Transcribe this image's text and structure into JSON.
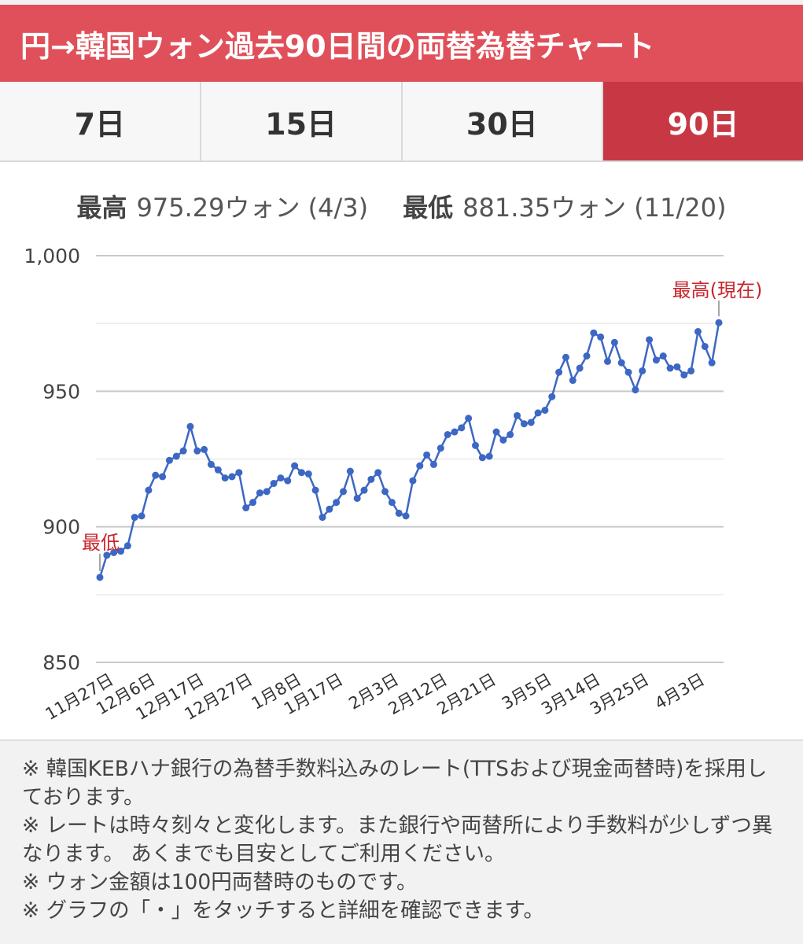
{
  "header": {
    "title": "円→韓国ウォン過去90日間の両替為替チャート"
  },
  "tabs": [
    {
      "label": "7日",
      "active": false
    },
    {
      "label": "15日",
      "active": false
    },
    {
      "label": "30日",
      "active": false
    },
    {
      "label": "90日",
      "active": true
    }
  ],
  "stats": {
    "high_label": "最高",
    "high_value": "975.29ウォン (4/3)",
    "low_label": "最低",
    "low_value": "881.35ウォン (11/20)"
  },
  "colors": {
    "header": "#e0505a",
    "active_tab": "#c73844",
    "line": "#3d67c4",
    "annotation": "#c8252c"
  },
  "chart_data": {
    "type": "line",
    "title": "",
    "xlabel": "",
    "ylabel": "",
    "ylim": [
      850,
      1000
    ],
    "yticks": [
      "1,000",
      "950",
      "900",
      "850"
    ],
    "grid": true,
    "xticks": [
      "11月27日",
      "12月6日",
      "12月17日",
      "12月27日",
      "1月8日",
      "1月17日",
      "2月3日",
      "2月12日",
      "2月21日",
      "3月5日",
      "3月14日",
      "3月25日",
      "4月3日"
    ],
    "xtick_index": [
      1,
      7,
      14,
      21,
      28,
      34,
      42,
      49,
      56,
      64,
      71,
      78,
      86
    ],
    "annotations": {
      "low": "最低",
      "high": "最高(現在)"
    },
    "series": [
      {
        "values": [
          881.35,
          889.5,
          890.5,
          891,
          893,
          903.5,
          904,
          913.5,
          919,
          918.5,
          924.5,
          926,
          928,
          937,
          928,
          928.5,
          923,
          921,
          918,
          918.5,
          920,
          907,
          909,
          912.5,
          913,
          916,
          918,
          917,
          922.5,
          920,
          919.5,
          913.5,
          903.5,
          906.5,
          909,
          913,
          920.5,
          910.5,
          913.5,
          917.5,
          920,
          913,
          909,
          905,
          904,
          917,
          922.5,
          926.5,
          923,
          929,
          934,
          935,
          936.5,
          940,
          930,
          925.5,
          926,
          935,
          932,
          934,
          941,
          938,
          938.5,
          942,
          943,
          948,
          957,
          962.5,
          954,
          958.5,
          963,
          971.5,
          970,
          961,
          968,
          960.5,
          957,
          950.5,
          957.5,
          969,
          961.5,
          963,
          958.5,
          959,
          956,
          957.5,
          972,
          966.5,
          960.5,
          975.29
        ]
      }
    ]
  },
  "notes": [
    "※ 韓国KEBハナ銀行の為替手数料込みのレート(TTSおよび現金両替時)を採用しております。",
    "※ レートは時々刻々と変化します。また銀行や両替所により手数料が少しずつ異なります。 あくまでも目安としてご利用ください。",
    "※ ウォン金額は100円両替時のものです。",
    "※ グラフの「・」をタッチすると詳細を確認できます。"
  ]
}
